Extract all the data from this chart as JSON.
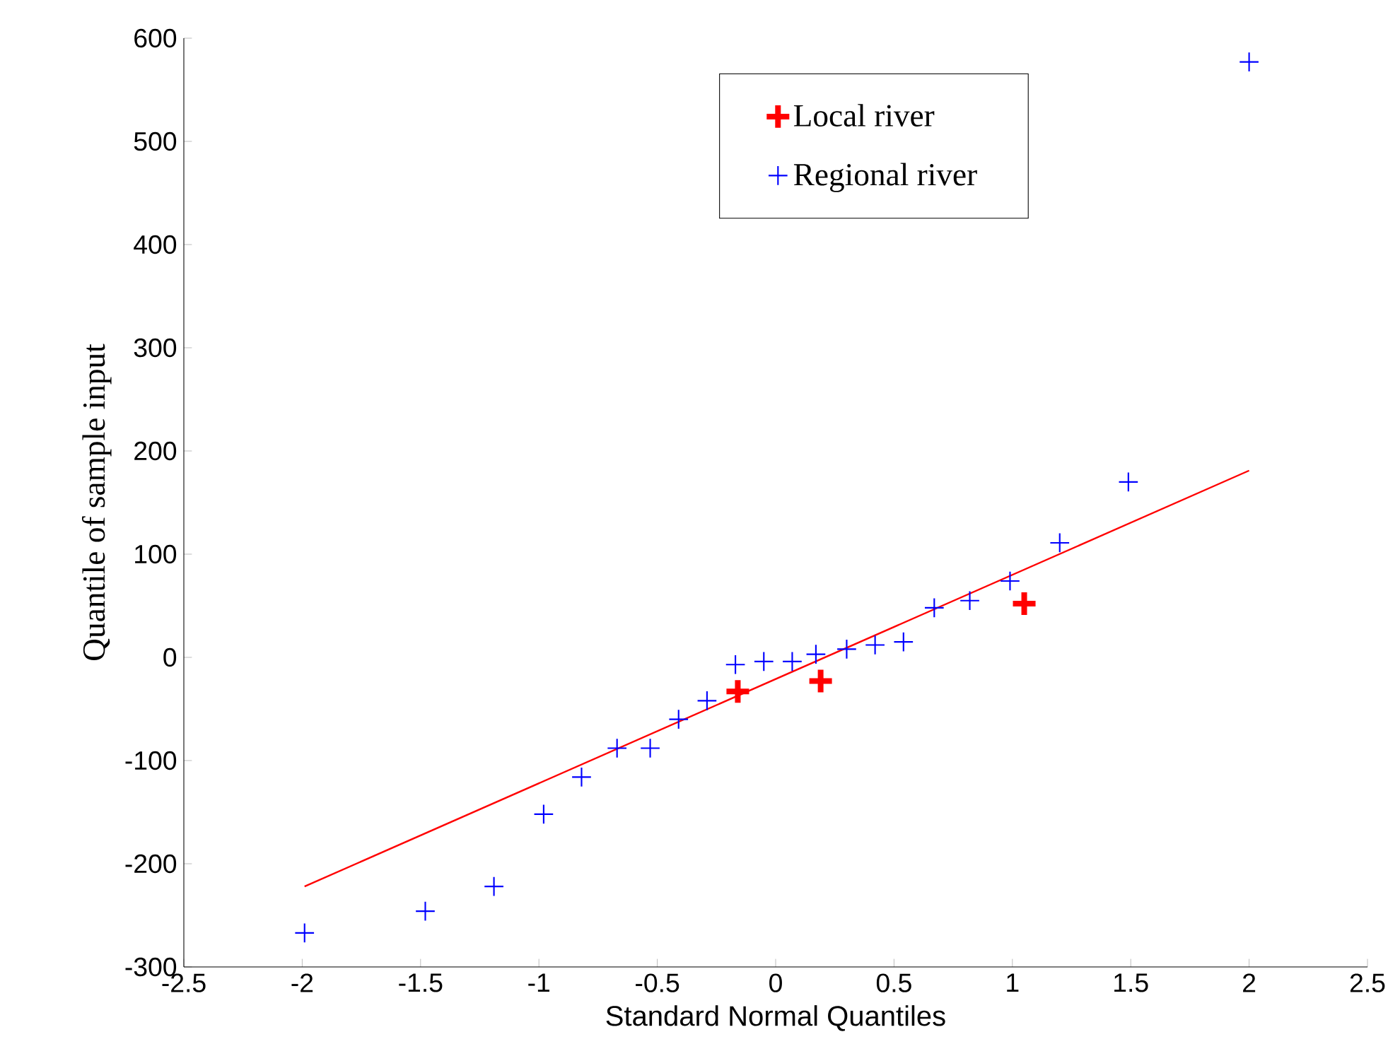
{
  "chart_data": {
    "type": "scatter",
    "xlabel": "Standard Normal Quantiles",
    "ylabel": "Quantile of sample input",
    "series": [
      {
        "name": "Local river",
        "color": "#ff0000",
        "marker": "cross",
        "x": [
          -0.16,
          0.19,
          1.05
        ],
        "values": [
          -33,
          -23,
          52
        ]
      },
      {
        "name": "Regional river",
        "color": "#0000ff",
        "marker": "cross",
        "x": [
          -1.99,
          -1.48,
          -1.19,
          -0.98,
          -0.82,
          -0.67,
          -0.53,
          -0.41,
          -0.29,
          -0.17,
          -0.05,
          0.07,
          0.17,
          0.3,
          0.42,
          0.54,
          0.67,
          0.82,
          0.99,
          1.2,
          1.49,
          2.0
        ],
        "values": [
          -267,
          -246,
          -222,
          -152,
          -116,
          -88,
          -88,
          -60,
          -42,
          -7,
          -4,
          -4,
          3,
          8,
          12,
          15,
          48,
          55,
          74,
          111,
          170,
          577
        ]
      },
      {
        "type": "line",
        "color": "#ff0000",
        "marker": "none",
        "x": [
          -1.99,
          2.0
        ],
        "values": [
          -222,
          181
        ]
      }
    ],
    "xlim": [
      -2.5,
      2.5
    ],
    "ylim": [
      -300,
      600
    ],
    "xticks": [
      -2.5,
      -2,
      -1.5,
      -1,
      -0.5,
      0,
      0.5,
      1,
      1.5,
      2,
      2.5
    ],
    "yticks": [
      -300,
      -200,
      -100,
      0,
      100,
      200,
      300,
      400,
      500,
      600
    ],
    "grid": false,
    "legend": "top"
  }
}
